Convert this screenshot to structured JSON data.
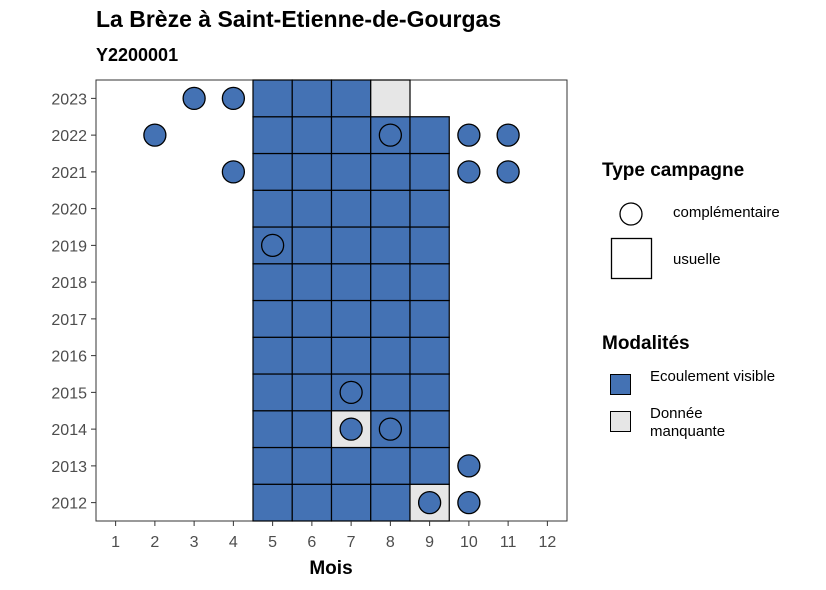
{
  "header": {
    "title": "La Brèze à Saint-Etienne-de-Gourgas",
    "subtitle": "Y2200001"
  },
  "legend": {
    "type_title": "Type campagne",
    "type_items": [
      {
        "label": "complémentaire",
        "shape": "circle"
      },
      {
        "label": "usuelle",
        "shape": "square"
      }
    ],
    "modalites_title": "Modalités",
    "modalites_items": [
      {
        "label": "Ecoulement visible",
        "color": "#4472B4"
      },
      {
        "label": "Donnée manquante",
        "color": "#E6E6E6"
      }
    ]
  },
  "chart_data": {
    "type": "heatmap",
    "xlabel": "Mois",
    "ylabel": "",
    "x_ticks": [
      1,
      2,
      3,
      4,
      5,
      6,
      7,
      8,
      9,
      10,
      11,
      12
    ],
    "y_ticks": [
      2012,
      2013,
      2014,
      2015,
      2016,
      2017,
      2018,
      2019,
      2020,
      2021,
      2022,
      2023
    ],
    "xlim": [
      0.5,
      12.5
    ],
    "ylim": [
      2011.5,
      2023.5
    ],
    "colors": {
      "Ecoulement visible": "#4472B4",
      "Donnée manquante": "#E6E6E6"
    },
    "usuelle": [
      {
        "year": 2012,
        "months": [
          5,
          6,
          7,
          8
        ],
        "modalite": "Ecoulement visible"
      },
      {
        "year": 2012,
        "months": [
          9
        ],
        "modalite": "Donnée manquante"
      },
      {
        "year": 2013,
        "months": [
          5,
          6,
          7,
          8,
          9
        ],
        "modalite": "Ecoulement visible"
      },
      {
        "year": 2014,
        "months": [
          5,
          6,
          8,
          9
        ],
        "modalite": "Ecoulement visible"
      },
      {
        "year": 2014,
        "months": [
          7
        ],
        "modalite": "Donnée manquante"
      },
      {
        "year": 2015,
        "months": [
          5,
          6,
          7,
          8,
          9
        ],
        "modalite": "Ecoulement visible"
      },
      {
        "year": 2016,
        "months": [
          5,
          6,
          7,
          8,
          9
        ],
        "modalite": "Ecoulement visible"
      },
      {
        "year": 2017,
        "months": [
          5,
          6,
          7,
          8,
          9
        ],
        "modalite": "Ecoulement visible"
      },
      {
        "year": 2018,
        "months": [
          5,
          6,
          7,
          8,
          9
        ],
        "modalite": "Ecoulement visible"
      },
      {
        "year": 2019,
        "months": [
          5,
          6,
          7,
          8,
          9
        ],
        "modalite": "Ecoulement visible"
      },
      {
        "year": 2020,
        "months": [
          5,
          6,
          7,
          8,
          9
        ],
        "modalite": "Ecoulement visible"
      },
      {
        "year": 2021,
        "months": [
          5,
          6,
          7,
          8,
          9
        ],
        "modalite": "Ecoulement visible"
      },
      {
        "year": 2022,
        "months": [
          5,
          6,
          7,
          8,
          9
        ],
        "modalite": "Ecoulement visible"
      },
      {
        "year": 2023,
        "months": [
          5,
          6,
          7
        ],
        "modalite": "Ecoulement visible"
      },
      {
        "year": 2023,
        "months": [
          8
        ],
        "modalite": "Donnée manquante"
      }
    ],
    "complementaire": [
      {
        "year": 2023,
        "month": 3
      },
      {
        "year": 2023,
        "month": 4
      },
      {
        "year": 2022,
        "month": 2
      },
      {
        "year": 2022,
        "month": 8
      },
      {
        "year": 2022,
        "month": 10
      },
      {
        "year": 2022,
        "month": 11
      },
      {
        "year": 2021,
        "month": 4
      },
      {
        "year": 2021,
        "month": 10
      },
      {
        "year": 2021,
        "month": 11
      },
      {
        "year": 2019,
        "month": 5
      },
      {
        "year": 2015,
        "month": 7
      },
      {
        "year": 2014,
        "month": 7
      },
      {
        "year": 2014,
        "month": 8
      },
      {
        "year": 2013,
        "month": 10
      },
      {
        "year": 2012,
        "month": 9
      },
      {
        "year": 2012,
        "month": 10
      }
    ],
    "complementaire_fill": "#4472B4"
  }
}
